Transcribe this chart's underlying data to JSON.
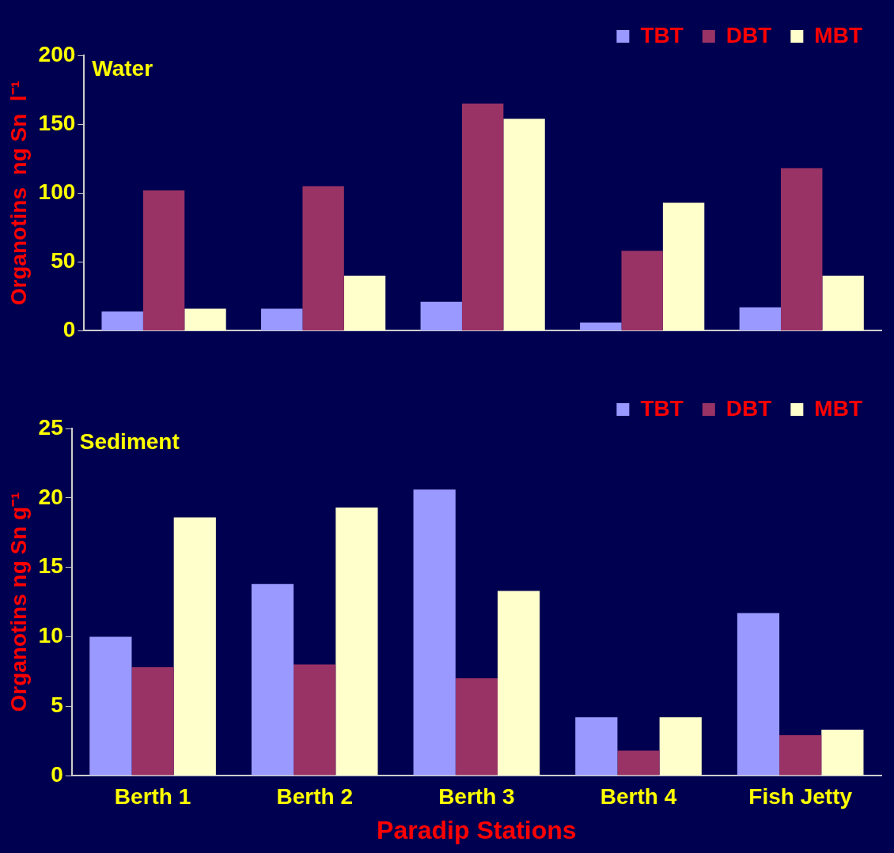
{
  "chart_data": [
    {
      "type": "bar",
      "title": "Water",
      "ylabel": "Organotins  ng Sn  l⁻¹",
      "categories": [
        null,
        null,
        null,
        null,
        null
      ],
      "series": [
        {
          "name": "TBT",
          "color": "#9999ff",
          "values": [
            14,
            16,
            21,
            6,
            17
          ]
        },
        {
          "name": "DBT",
          "color": "#993366",
          "values": [
            102,
            105,
            165,
            58,
            118
          ]
        },
        {
          "name": "MBT",
          "color": "#ffffcc",
          "values": [
            16,
            40,
            154,
            93,
            40
          ]
        }
      ],
      "ylim": [
        0,
        200
      ],
      "yticks": [
        0,
        50,
        100,
        150,
        200
      ],
      "grid": false,
      "legend": "top right"
    },
    {
      "type": "bar",
      "title": "Sediment",
      "ylabel": "Organotins ng Sn g⁻¹",
      "xlabel": "Paradip Stations",
      "categories": [
        "Berth 1",
        "Berth 2",
        "Berth 3",
        "Berth 4",
        "Fish Jetty"
      ],
      "series": [
        {
          "name": "TBT",
          "color": "#9999ff",
          "values": [
            10,
            13.8,
            20.6,
            4.2,
            11.7
          ]
        },
        {
          "name": "DBT",
          "color": "#993366",
          "values": [
            7.8,
            8.0,
            7.0,
            1.8,
            2.9
          ]
        },
        {
          "name": "MBT",
          "color": "#ffffcc",
          "values": [
            18.6,
            19.3,
            13.3,
            4.2,
            3.3
          ]
        }
      ],
      "ylim": [
        0,
        25
      ],
      "yticks": [
        0,
        5,
        10,
        15,
        20,
        25
      ],
      "grid": false,
      "legend": "top right"
    }
  ]
}
